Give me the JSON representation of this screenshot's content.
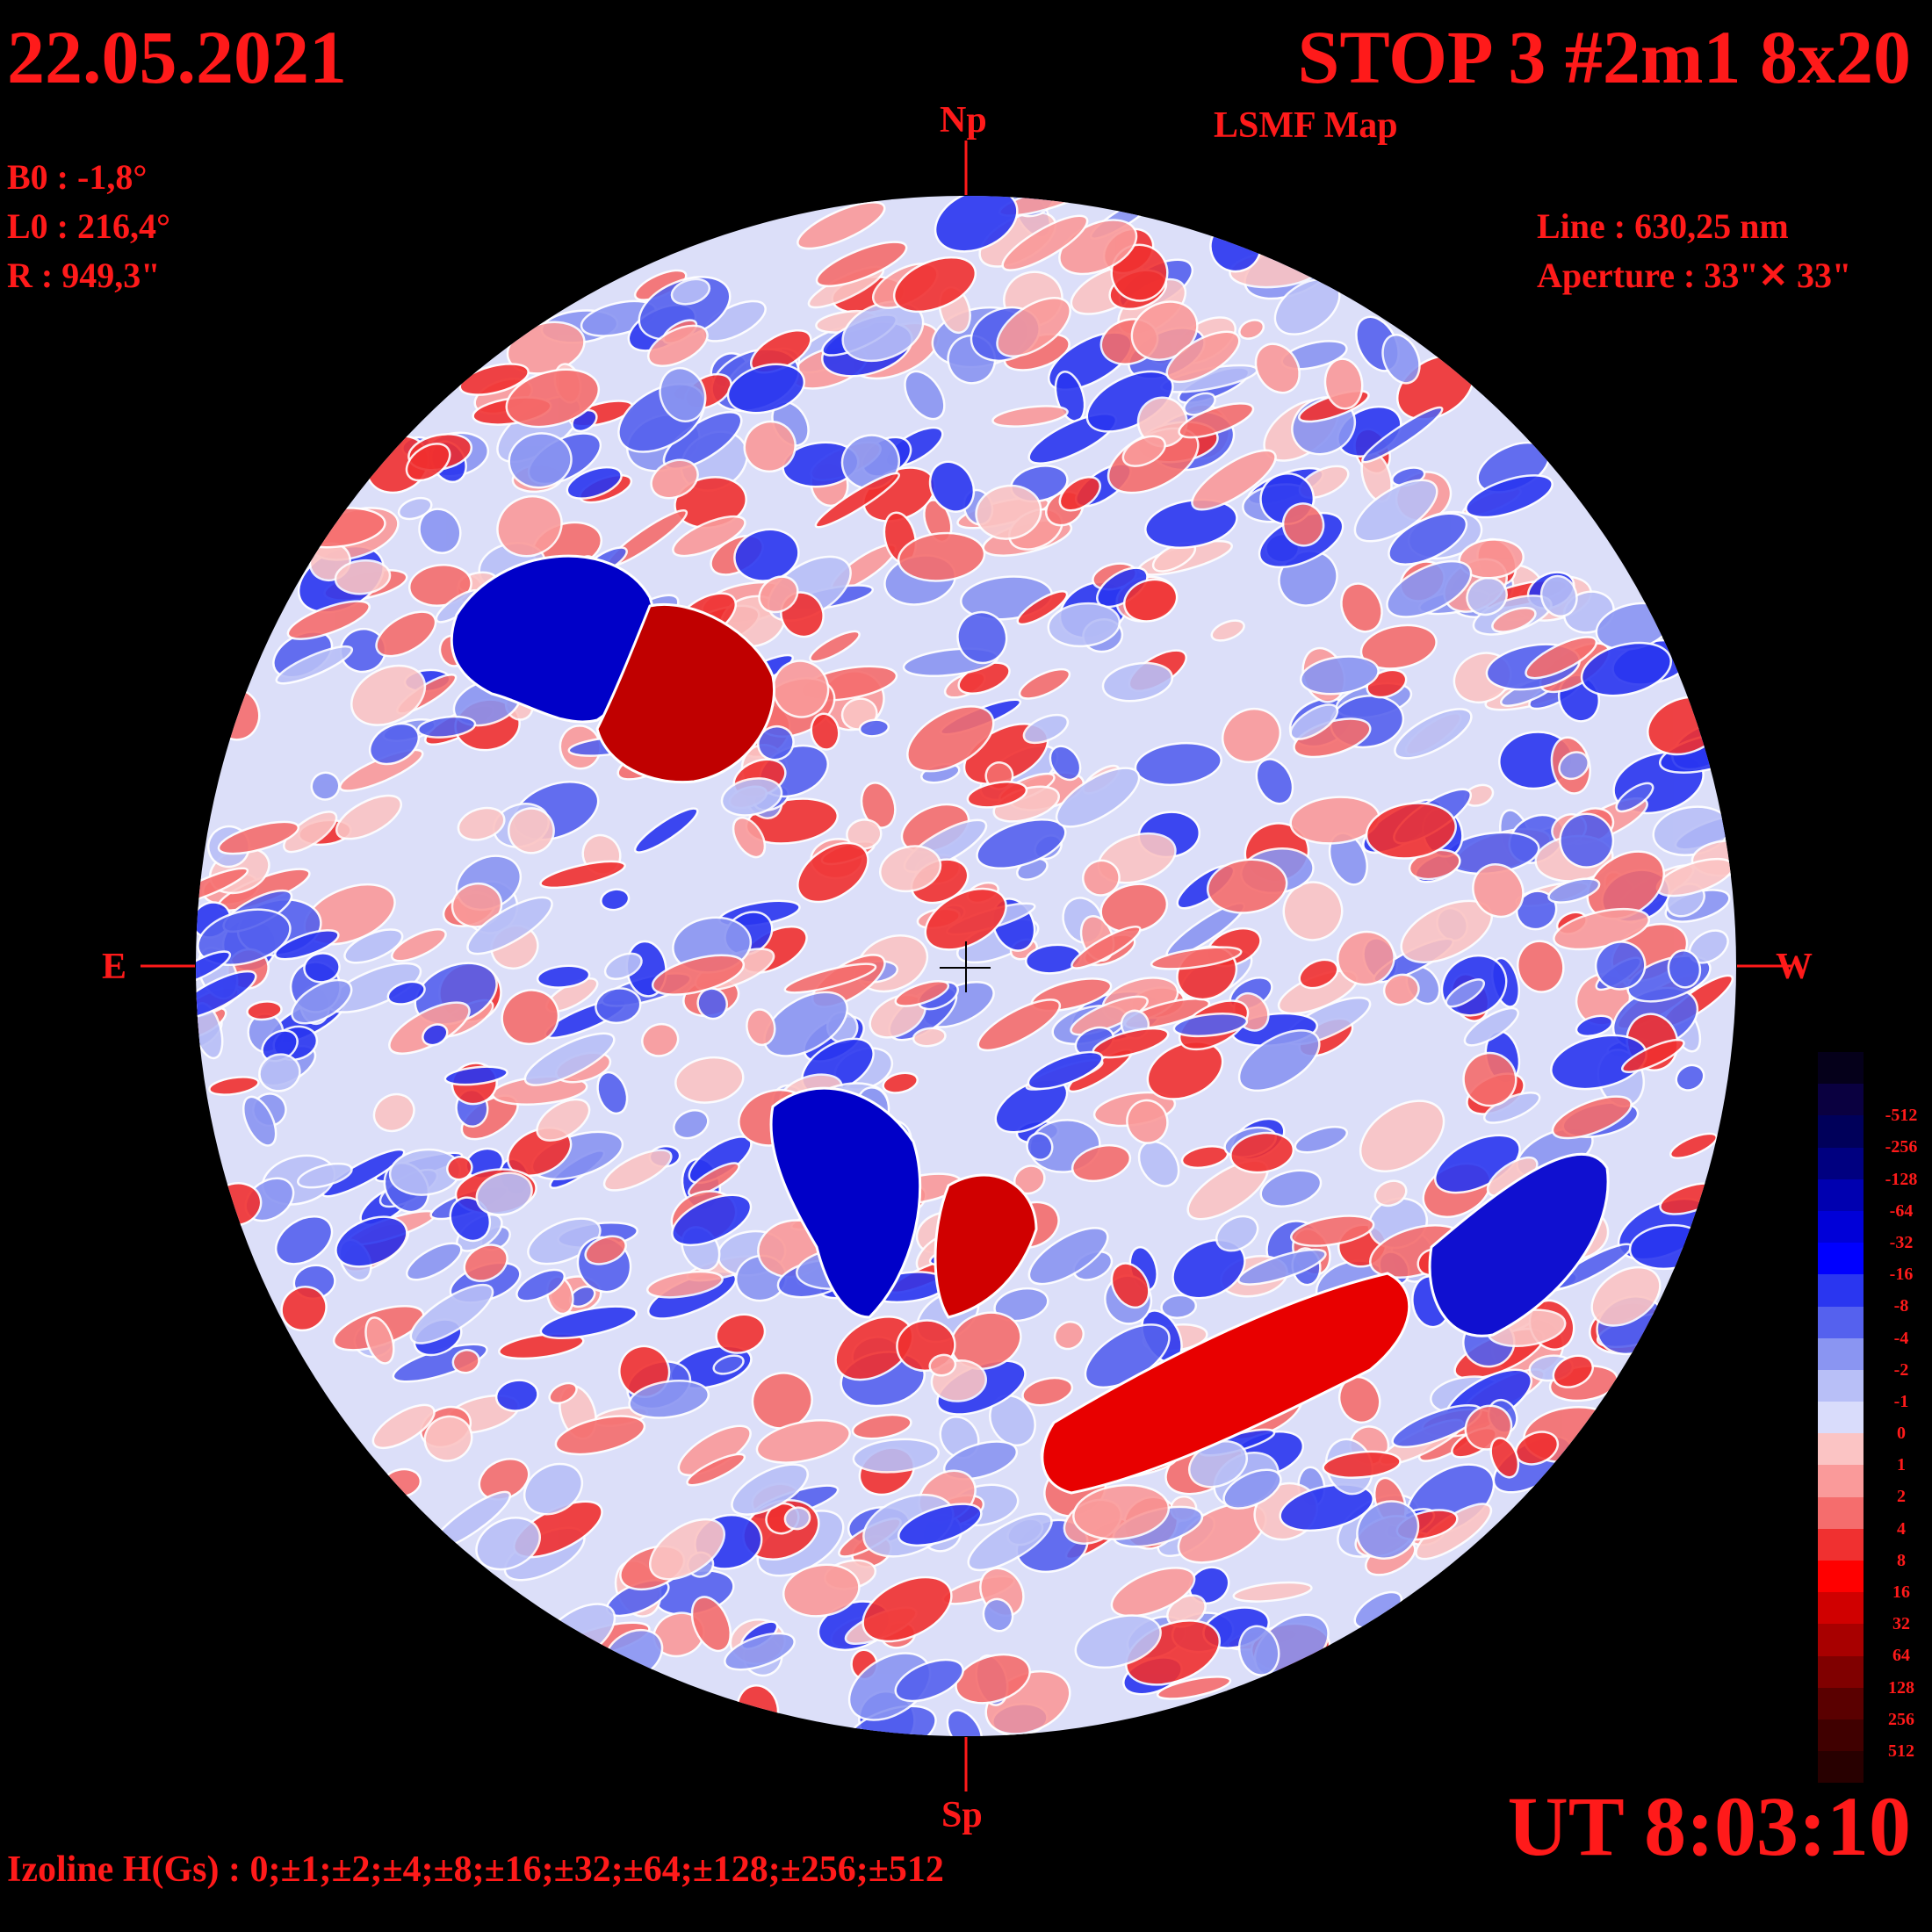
{
  "header": {
    "date": "22.05.2021",
    "title": "STOP 3 #2m1 8x20",
    "subtitle": "LSMF  Map"
  },
  "params": {
    "b0": "B0 : -1,8°",
    "l0": "L0 : 216,4°",
    "r": "R  : 949,3\""
  },
  "instrument": {
    "line": "Line :  630,25 nm",
    "aperture": "Aperture : 33\"✕ 33\""
  },
  "cardinal": {
    "north": "Np",
    "south": "Sp",
    "east": "E",
    "west": "W"
  },
  "time": "UT 8:03:10",
  "izoline": "Izoline H(Gs) : 0;±1;±2;±4;±8;±16;±32;±64;±128;±256;±512",
  "legend": {
    "levels": [
      {
        "label": "",
        "color": "#05001a"
      },
      {
        "label": "-512",
        "color": "#0a0040"
      },
      {
        "label": "-256",
        "color": "#00005a"
      },
      {
        "label": "-128",
        "color": "#000080"
      },
      {
        "label": "-64",
        "color": "#0000b0"
      },
      {
        "label": "-32",
        "color": "#0000d8"
      },
      {
        "label": "-16",
        "color": "#0000ff"
      },
      {
        "label": "-8",
        "color": "#2a36f0"
      },
      {
        "label": "-4",
        "color": "#5561ee"
      },
      {
        "label": "-2",
        "color": "#8a95f2"
      },
      {
        "label": "-1",
        "color": "#b8bff7"
      },
      {
        "label": "0",
        "color": "#d9dcfb"
      },
      {
        "label": "1",
        "color": "#fbc4c4"
      },
      {
        "label": "2",
        "color": "#fa9a9a"
      },
      {
        "label": "4",
        "color": "#f56d6d"
      },
      {
        "label": "8",
        "color": "#f03030"
      },
      {
        "label": "16",
        "color": "#ff0000"
      },
      {
        "label": "32",
        "color": "#d00000"
      },
      {
        "label": "64",
        "color": "#a80000"
      },
      {
        "label": "128",
        "color": "#800000"
      },
      {
        "label": "256",
        "color": "#5a0000"
      },
      {
        "label": "512",
        "color": "#400000"
      },
      {
        "label": "",
        "color": "#280000"
      }
    ]
  },
  "features": [
    {
      "name": "blue-region-ne-upper",
      "polarity": "negative",
      "color": "#0000c8"
    },
    {
      "name": "red-region-ne-upper",
      "polarity": "positive",
      "color": "#c00000"
    },
    {
      "name": "blue-region-south-center",
      "polarity": "negative",
      "color": "#0000c8"
    },
    {
      "name": "red-region-south-center",
      "polarity": "positive",
      "color": "#d00000"
    },
    {
      "name": "blue-region-sw",
      "polarity": "negative",
      "color": "#1010d0"
    },
    {
      "name": "red-band-south",
      "polarity": "positive",
      "color": "#e80000"
    }
  ]
}
